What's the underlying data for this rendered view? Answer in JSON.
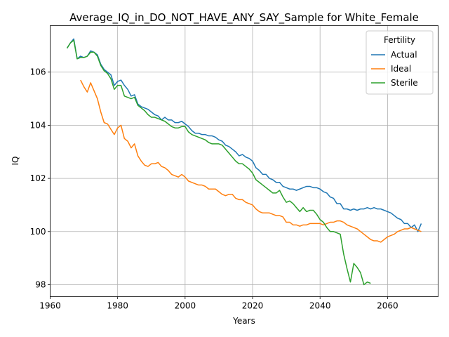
{
  "chart_data": {
    "type": "line",
    "title": "Average_IQ_in_DO_NOT_HAVE_ANY_SAY_Sample for White_Female",
    "xlabel": "Years",
    "ylabel": "IQ",
    "xlim": [
      1960,
      2075
    ],
    "ylim": [
      97.55,
      107.75
    ],
    "x_ticks": [
      1960,
      1980,
      2000,
      2020,
      2040,
      2060
    ],
    "y_ticks": [
      98,
      100,
      102,
      104,
      106
    ],
    "grid": true,
    "legend": {
      "title": "Fertility",
      "position": "top-right"
    },
    "series": [
      {
        "name": "Actual",
        "color": "#1f77b4",
        "points": [
          [
            1965,
            106.9
          ],
          [
            1966,
            107.1
          ],
          [
            1967,
            107.25
          ],
          [
            1968,
            106.5
          ],
          [
            1969,
            106.6
          ],
          [
            1970,
            106.55
          ],
          [
            1971,
            106.6
          ],
          [
            1972,
            106.8
          ],
          [
            1973,
            106.75
          ],
          [
            1974,
            106.65
          ],
          [
            1975,
            106.3
          ],
          [
            1976,
            106.1
          ],
          [
            1977,
            106.0
          ],
          [
            1978,
            105.9
          ],
          [
            1979,
            105.5
          ],
          [
            1980,
            105.65
          ],
          [
            1981,
            105.7
          ],
          [
            1982,
            105.5
          ],
          [
            1983,
            105.35
          ],
          [
            1984,
            105.1
          ],
          [
            1985,
            105.15
          ],
          [
            1986,
            104.8
          ],
          [
            1987,
            104.7
          ],
          [
            1988,
            104.65
          ],
          [
            1989,
            104.6
          ],
          [
            1990,
            104.5
          ],
          [
            1991,
            104.4
          ],
          [
            1992,
            104.35
          ],
          [
            1993,
            104.2
          ],
          [
            1994,
            104.3
          ],
          [
            1995,
            104.2
          ],
          [
            1996,
            104.2
          ],
          [
            1997,
            104.1
          ],
          [
            1998,
            104.1
          ],
          [
            1999,
            104.15
          ],
          [
            2000,
            104.05
          ],
          [
            2001,
            103.95
          ],
          [
            2002,
            103.8
          ],
          [
            2003,
            103.7
          ],
          [
            2004,
            103.7
          ],
          [
            2005,
            103.65
          ],
          [
            2006,
            103.65
          ],
          [
            2007,
            103.6
          ],
          [
            2008,
            103.6
          ],
          [
            2009,
            103.55
          ],
          [
            2010,
            103.45
          ],
          [
            2011,
            103.4
          ],
          [
            2012,
            103.25
          ],
          [
            2013,
            103.2
          ],
          [
            2014,
            103.1
          ],
          [
            2015,
            103.0
          ],
          [
            2016,
            102.85
          ],
          [
            2017,
            102.9
          ],
          [
            2018,
            102.8
          ],
          [
            2019,
            102.75
          ],
          [
            2020,
            102.65
          ],
          [
            2021,
            102.4
          ],
          [
            2022,
            102.3
          ],
          [
            2023,
            102.15
          ],
          [
            2024,
            102.15
          ],
          [
            2025,
            102.0
          ],
          [
            2026,
            101.95
          ],
          [
            2027,
            101.85
          ],
          [
            2028,
            101.85
          ],
          [
            2029,
            101.7
          ],
          [
            2030,
            101.65
          ],
          [
            2031,
            101.6
          ],
          [
            2032,
            101.6
          ],
          [
            2033,
            101.55
          ],
          [
            2034,
            101.6
          ],
          [
            2035,
            101.65
          ],
          [
            2036,
            101.7
          ],
          [
            2037,
            101.7
          ],
          [
            2038,
            101.65
          ],
          [
            2039,
            101.65
          ],
          [
            2040,
            101.6
          ],
          [
            2041,
            101.5
          ],
          [
            2042,
            101.45
          ],
          [
            2043,
            101.3
          ],
          [
            2044,
            101.25
          ],
          [
            2045,
            101.05
          ],
          [
            2046,
            101.05
          ],
          [
            2047,
            100.85
          ],
          [
            2048,
            100.85
          ],
          [
            2049,
            100.8
          ],
          [
            2050,
            100.85
          ],
          [
            2051,
            100.8
          ],
          [
            2052,
            100.85
          ],
          [
            2053,
            100.85
          ],
          [
            2054,
            100.9
          ],
          [
            2055,
            100.85
          ],
          [
            2056,
            100.9
          ],
          [
            2057,
            100.85
          ],
          [
            2058,
            100.85
          ],
          [
            2059,
            100.8
          ],
          [
            2060,
            100.75
          ],
          [
            2061,
            100.7
          ],
          [
            2062,
            100.6
          ],
          [
            2063,
            100.5
          ],
          [
            2064,
            100.45
          ],
          [
            2065,
            100.3
          ],
          [
            2066,
            100.3
          ],
          [
            2067,
            100.15
          ],
          [
            2068,
            100.25
          ],
          [
            2069,
            100.0
          ],
          [
            2070,
            100.3
          ]
        ]
      },
      {
        "name": "Ideal",
        "color": "#ff7f0e",
        "points": [
          [
            1969,
            105.7
          ],
          [
            1970,
            105.45
          ],
          [
            1971,
            105.25
          ],
          [
            1972,
            105.6
          ],
          [
            1973,
            105.3
          ],
          [
            1974,
            105.0
          ],
          [
            1975,
            104.5
          ],
          [
            1976,
            104.1
          ],
          [
            1977,
            104.05
          ],
          [
            1978,
            103.85
          ],
          [
            1979,
            103.65
          ],
          [
            1980,
            103.9
          ],
          [
            1981,
            104.0
          ],
          [
            1982,
            103.5
          ],
          [
            1983,
            103.4
          ],
          [
            1984,
            103.15
          ],
          [
            1985,
            103.3
          ],
          [
            1986,
            102.85
          ],
          [
            1987,
            102.65
          ],
          [
            1988,
            102.5
          ],
          [
            1989,
            102.45
          ],
          [
            1990,
            102.55
          ],
          [
            1991,
            102.55
          ],
          [
            1992,
            102.6
          ],
          [
            1993,
            102.45
          ],
          [
            1994,
            102.4
          ],
          [
            1995,
            102.3
          ],
          [
            1996,
            102.15
          ],
          [
            1997,
            102.1
          ],
          [
            1998,
            102.05
          ],
          [
            1999,
            102.15
          ],
          [
            2000,
            102.05
          ],
          [
            2001,
            101.9
          ],
          [
            2002,
            101.85
          ],
          [
            2003,
            101.8
          ],
          [
            2004,
            101.75
          ],
          [
            2005,
            101.75
          ],
          [
            2006,
            101.7
          ],
          [
            2007,
            101.6
          ],
          [
            2008,
            101.6
          ],
          [
            2009,
            101.6
          ],
          [
            2010,
            101.5
          ],
          [
            2011,
            101.4
          ],
          [
            2012,
            101.35
          ],
          [
            2013,
            101.4
          ],
          [
            2014,
            101.4
          ],
          [
            2015,
            101.25
          ],
          [
            2016,
            101.2
          ],
          [
            2017,
            101.2
          ],
          [
            2018,
            101.1
          ],
          [
            2019,
            101.05
          ],
          [
            2020,
            101.0
          ],
          [
            2021,
            100.85
          ],
          [
            2022,
            100.75
          ],
          [
            2023,
            100.7
          ],
          [
            2024,
            100.7
          ],
          [
            2025,
            100.7
          ],
          [
            2026,
            100.65
          ],
          [
            2027,
            100.6
          ],
          [
            2028,
            100.6
          ],
          [
            2029,
            100.55
          ],
          [
            2030,
            100.35
          ],
          [
            2031,
            100.35
          ],
          [
            2032,
            100.25
          ],
          [
            2033,
            100.25
          ],
          [
            2034,
            100.2
          ],
          [
            2035,
            100.25
          ],
          [
            2036,
            100.25
          ],
          [
            2037,
            100.3
          ],
          [
            2038,
            100.3
          ],
          [
            2039,
            100.3
          ],
          [
            2040,
            100.3
          ],
          [
            2041,
            100.25
          ],
          [
            2042,
            100.3
          ],
          [
            2043,
            100.35
          ],
          [
            2044,
            100.35
          ],
          [
            2045,
            100.4
          ],
          [
            2046,
            100.4
          ],
          [
            2047,
            100.35
          ],
          [
            2048,
            100.25
          ],
          [
            2049,
            100.2
          ],
          [
            2050,
            100.15
          ],
          [
            2051,
            100.1
          ],
          [
            2052,
            100.0
          ],
          [
            2053,
            99.9
          ],
          [
            2054,
            99.8
          ],
          [
            2055,
            99.7
          ],
          [
            2056,
            99.65
          ],
          [
            2057,
            99.65
          ],
          [
            2058,
            99.6
          ],
          [
            2059,
            99.7
          ],
          [
            2060,
            99.8
          ],
          [
            2061,
            99.85
          ],
          [
            2062,
            99.9
          ],
          [
            2063,
            100.0
          ],
          [
            2064,
            100.05
          ],
          [
            2065,
            100.1
          ],
          [
            2066,
            100.1
          ],
          [
            2067,
            100.15
          ],
          [
            2068,
            100.1
          ],
          [
            2069,
            100.05
          ],
          [
            2070,
            100.0
          ]
        ]
      },
      {
        "name": "Sterile",
        "color": "#2ca02c",
        "points": [
          [
            1965,
            106.9
          ],
          [
            1966,
            107.1
          ],
          [
            1967,
            107.2
          ],
          [
            1968,
            106.5
          ],
          [
            1969,
            106.55
          ],
          [
            1970,
            106.55
          ],
          [
            1971,
            106.6
          ],
          [
            1972,
            106.75
          ],
          [
            1973,
            106.75
          ],
          [
            1974,
            106.6
          ],
          [
            1975,
            106.25
          ],
          [
            1976,
            106.05
          ],
          [
            1977,
            105.95
          ],
          [
            1978,
            105.75
          ],
          [
            1979,
            105.35
          ],
          [
            1980,
            105.5
          ],
          [
            1981,
            105.5
          ],
          [
            1982,
            105.1
          ],
          [
            1983,
            105.05
          ],
          [
            1984,
            105.0
          ],
          [
            1985,
            105.05
          ],
          [
            1986,
            104.75
          ],
          [
            1987,
            104.65
          ],
          [
            1988,
            104.55
          ],
          [
            1989,
            104.4
          ],
          [
            1990,
            104.3
          ],
          [
            1991,
            104.3
          ],
          [
            1992,
            104.25
          ],
          [
            1993,
            104.2
          ],
          [
            1994,
            104.15
          ],
          [
            1995,
            104.05
          ],
          [
            1996,
            103.95
          ],
          [
            1997,
            103.9
          ],
          [
            1998,
            103.9
          ],
          [
            1999,
            103.95
          ],
          [
            2000,
            103.95
          ],
          [
            2001,
            103.75
          ],
          [
            2002,
            103.65
          ],
          [
            2003,
            103.6
          ],
          [
            2004,
            103.55
          ],
          [
            2005,
            103.5
          ],
          [
            2006,
            103.45
          ],
          [
            2007,
            103.35
          ],
          [
            2008,
            103.3
          ],
          [
            2009,
            103.3
          ],
          [
            2010,
            103.3
          ],
          [
            2011,
            103.25
          ],
          [
            2012,
            103.1
          ],
          [
            2013,
            102.95
          ],
          [
            2014,
            102.8
          ],
          [
            2015,
            102.65
          ],
          [
            2016,
            102.55
          ],
          [
            2017,
            102.55
          ],
          [
            2018,
            102.45
          ],
          [
            2019,
            102.35
          ],
          [
            2020,
            102.2
          ],
          [
            2021,
            101.95
          ],
          [
            2022,
            101.85
          ],
          [
            2023,
            101.75
          ],
          [
            2024,
            101.65
          ],
          [
            2025,
            101.55
          ],
          [
            2026,
            101.45
          ],
          [
            2027,
            101.45
          ],
          [
            2028,
            101.55
          ],
          [
            2029,
            101.3
          ],
          [
            2030,
            101.1
          ],
          [
            2031,
            101.15
          ],
          [
            2032,
            101.05
          ],
          [
            2033,
            100.9
          ],
          [
            2034,
            100.75
          ],
          [
            2035,
            100.9
          ],
          [
            2036,
            100.75
          ],
          [
            2037,
            100.8
          ],
          [
            2038,
            100.8
          ],
          [
            2039,
            100.65
          ],
          [
            2040,
            100.45
          ],
          [
            2041,
            100.35
          ],
          [
            2042,
            100.15
          ],
          [
            2043,
            100.0
          ],
          [
            2044,
            100.0
          ],
          [
            2045,
            99.95
          ],
          [
            2046,
            99.9
          ],
          [
            2047,
            99.15
          ],
          [
            2048,
            98.6
          ],
          [
            2049,
            98.1
          ],
          [
            2050,
            98.8
          ],
          [
            2051,
            98.65
          ],
          [
            2052,
            98.45
          ],
          [
            2053,
            98.0
          ],
          [
            2054,
            98.1
          ],
          [
            2055,
            98.05
          ]
        ]
      }
    ]
  }
}
